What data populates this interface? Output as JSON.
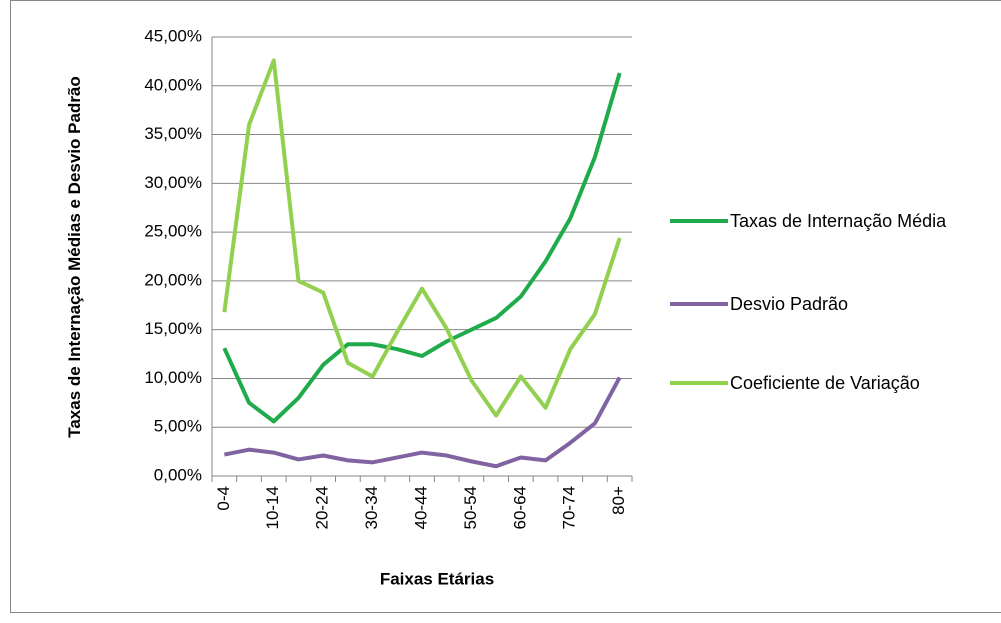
{
  "chart_data": {
    "type": "line",
    "xlabel": "Faixas Etárias",
    "ylabel": "Taxas de Internação Médias e Desvio Padrão",
    "categories": [
      "0-4",
      null,
      "10-14",
      null,
      "20-24",
      null,
      "30-34",
      null,
      "40-44",
      null,
      "50-54",
      null,
      "60-64",
      null,
      "70-74",
      null,
      "80+"
    ],
    "series": [
      {
        "name": "Taxas de Internação Média",
        "color": "#1faa4b",
        "values": [
          13.1,
          7.5,
          5.6,
          8.0,
          11.4,
          13.5,
          13.5,
          13.0,
          12.3,
          13.8,
          15.0,
          16.2,
          18.4,
          22.0,
          26.4,
          32.7,
          41.3
        ]
      },
      {
        "name": "Desvio Padrão",
        "color": "#8064a2",
        "values": [
          2.2,
          2.7,
          2.4,
          1.7,
          2.1,
          1.6,
          1.4,
          1.9,
          2.4,
          2.1,
          1.5,
          1.0,
          1.9,
          1.6,
          3.4,
          5.4,
          10.1
        ]
      },
      {
        "name": "Coeficiente de Variação",
        "color": "#92d050",
        "values": [
          16.8,
          36.0,
          42.6,
          20.0,
          18.8,
          11.6,
          10.2,
          14.8,
          19.2,
          15.1,
          9.8,
          6.2,
          10.2,
          7.0,
          13.0,
          16.6,
          24.4
        ]
      }
    ],
    "ylim": [
      0,
      45
    ],
    "yticks": [
      {
        "value": 0,
        "label": "0,00%"
      },
      {
        "value": 5,
        "label": "5,00%"
      },
      {
        "value": 10,
        "label": "10,00%"
      },
      {
        "value": 15,
        "label": "15,00%"
      },
      {
        "value": 20,
        "label": "20,00%"
      },
      {
        "value": 25,
        "label": "25,00%"
      },
      {
        "value": 30,
        "label": "30,00%"
      },
      {
        "value": 35,
        "label": "35,00%"
      },
      {
        "value": 40,
        "label": "40,00%"
      },
      {
        "value": 45,
        "label": "45,00%"
      }
    ],
    "grid": true,
    "legend": "right"
  }
}
